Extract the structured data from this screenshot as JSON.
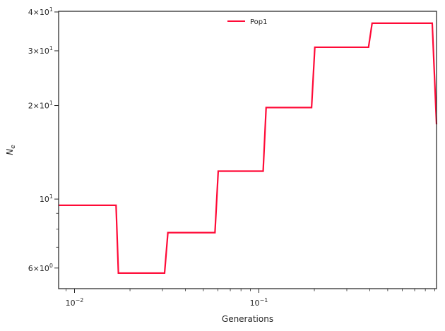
{
  "chart_data": {
    "type": "line",
    "xlabel": "Generations",
    "ylabel": "Ne",
    "xscale": "log",
    "yscale": "log",
    "xlim": [
      0.0082,
      0.92
    ],
    "ylim": [
      5.15,
      40.2
    ],
    "grid": false,
    "legend_position": "top-center",
    "x_ticks": [
      {
        "value": 0.01,
        "base": "10",
        "exp": "−2"
      },
      {
        "value": 0.1,
        "base": "10",
        "exp": "−1"
      }
    ],
    "y_ticks": [
      {
        "value": 6,
        "mantissa": "6",
        "exp": "0"
      },
      {
        "value": 10,
        "mantissa": "",
        "exp": "1"
      },
      {
        "value": 20,
        "mantissa": "2",
        "exp": "1"
      },
      {
        "value": 30,
        "mantissa": "3",
        "exp": "1"
      },
      {
        "value": 40,
        "mantissa": "4",
        "exp": "1"
      }
    ],
    "series": [
      {
        "name": "Pop1",
        "color": "#ff0a37",
        "x": [
          0.0082,
          0.0168,
          0.0173,
          0.0308,
          0.0321,
          0.0578,
          0.0602,
          0.1055,
          0.1095,
          0.1932,
          0.2012,
          0.3935,
          0.4115,
          0.872,
          0.92
        ],
        "y": [
          9.55,
          9.55,
          5.78,
          5.78,
          7.8,
          7.8,
          12.3,
          12.3,
          19.7,
          19.7,
          30.8,
          30.8,
          36.8,
          36.8,
          17.4
        ]
      }
    ]
  }
}
